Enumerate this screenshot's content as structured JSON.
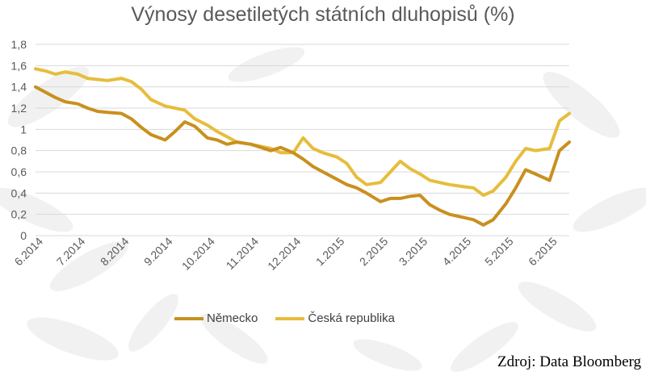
{
  "title": "Výnosy desetiletých státních dluhopisů (%)",
  "source": "Zdroj: Data Bloomberg",
  "colors": {
    "germany": "#C8901E",
    "czech": "#E6BD3C",
    "grid": "#D9D9D9",
    "text": "#595959"
  },
  "chart_data": {
    "type": "line",
    "title": "Výnosy desetiletých státních dluhopisů (%)",
    "xlabel": "",
    "ylabel": "",
    "ylim": [
      0,
      1.8
    ],
    "yticks": [
      "0",
      "0,2",
      "0,4",
      "0,6",
      "0,8",
      "1",
      "1,2",
      "1,4",
      "1,6",
      "1,8"
    ],
    "xticks": [
      "6.2014",
      "7.2014",
      "8.2014",
      "9.2014",
      "10.2014",
      "11.2014",
      "12.2014",
      "1.2015",
      "2.2015",
      "3.2015",
      "4.2015",
      "5.2015",
      "6.2015"
    ],
    "grid": "horizontal",
    "legend": "bottom",
    "x": [
      "2014-06-01",
      "2014-06-08",
      "2014-06-15",
      "2014-06-22",
      "2014-07-01",
      "2014-07-08",
      "2014-07-15",
      "2014-07-22",
      "2014-08-01",
      "2014-08-08",
      "2014-08-15",
      "2014-08-22",
      "2014-09-01",
      "2014-09-08",
      "2014-09-15",
      "2014-09-22",
      "2014-10-01",
      "2014-10-08",
      "2014-10-15",
      "2014-10-22",
      "2014-11-01",
      "2014-11-08",
      "2014-11-15",
      "2014-11-22",
      "2014-12-01",
      "2014-12-08",
      "2014-12-15",
      "2014-12-22",
      "2015-01-01",
      "2015-01-08",
      "2015-01-15",
      "2015-01-22",
      "2015-02-01",
      "2015-02-08",
      "2015-02-15",
      "2015-02-22",
      "2015-03-01",
      "2015-03-08",
      "2015-03-15",
      "2015-03-22",
      "2015-04-01",
      "2015-04-08",
      "2015-04-15",
      "2015-04-22",
      "2015-05-01",
      "2015-05-08",
      "2015-05-15",
      "2015-05-22",
      "2015-06-01",
      "2015-06-08",
      "2015-06-15"
    ],
    "series": [
      {
        "name": "Německo",
        "values": [
          1.4,
          1.35,
          1.3,
          1.26,
          1.24,
          1.2,
          1.17,
          1.16,
          1.15,
          1.1,
          1.02,
          0.95,
          0.9,
          0.98,
          1.07,
          1.03,
          0.92,
          0.9,
          0.86,
          0.88,
          0.86,
          0.83,
          0.8,
          0.83,
          0.78,
          0.72,
          0.65,
          0.6,
          0.53,
          0.48,
          0.45,
          0.4,
          0.32,
          0.35,
          0.35,
          0.37,
          0.38,
          0.29,
          0.24,
          0.2,
          0.17,
          0.15,
          0.1,
          0.15,
          0.3,
          0.45,
          0.62,
          0.58,
          0.52,
          0.8,
          0.88
        ]
      },
      {
        "name": "Česká republika",
        "values": [
          1.57,
          1.55,
          1.52,
          1.54,
          1.52,
          1.48,
          1.47,
          1.46,
          1.48,
          1.45,
          1.38,
          1.28,
          1.22,
          1.2,
          1.18,
          1.1,
          1.04,
          0.98,
          0.93,
          0.88,
          0.86,
          0.84,
          0.82,
          0.78,
          0.78,
          0.92,
          0.82,
          0.78,
          0.74,
          0.68,
          0.55,
          0.48,
          0.5,
          0.6,
          0.7,
          0.63,
          0.58,
          0.52,
          0.5,
          0.48,
          0.46,
          0.45,
          0.38,
          0.42,
          0.55,
          0.7,
          0.82,
          0.8,
          0.82,
          1.08,
          1.15
        ]
      }
    ]
  }
}
